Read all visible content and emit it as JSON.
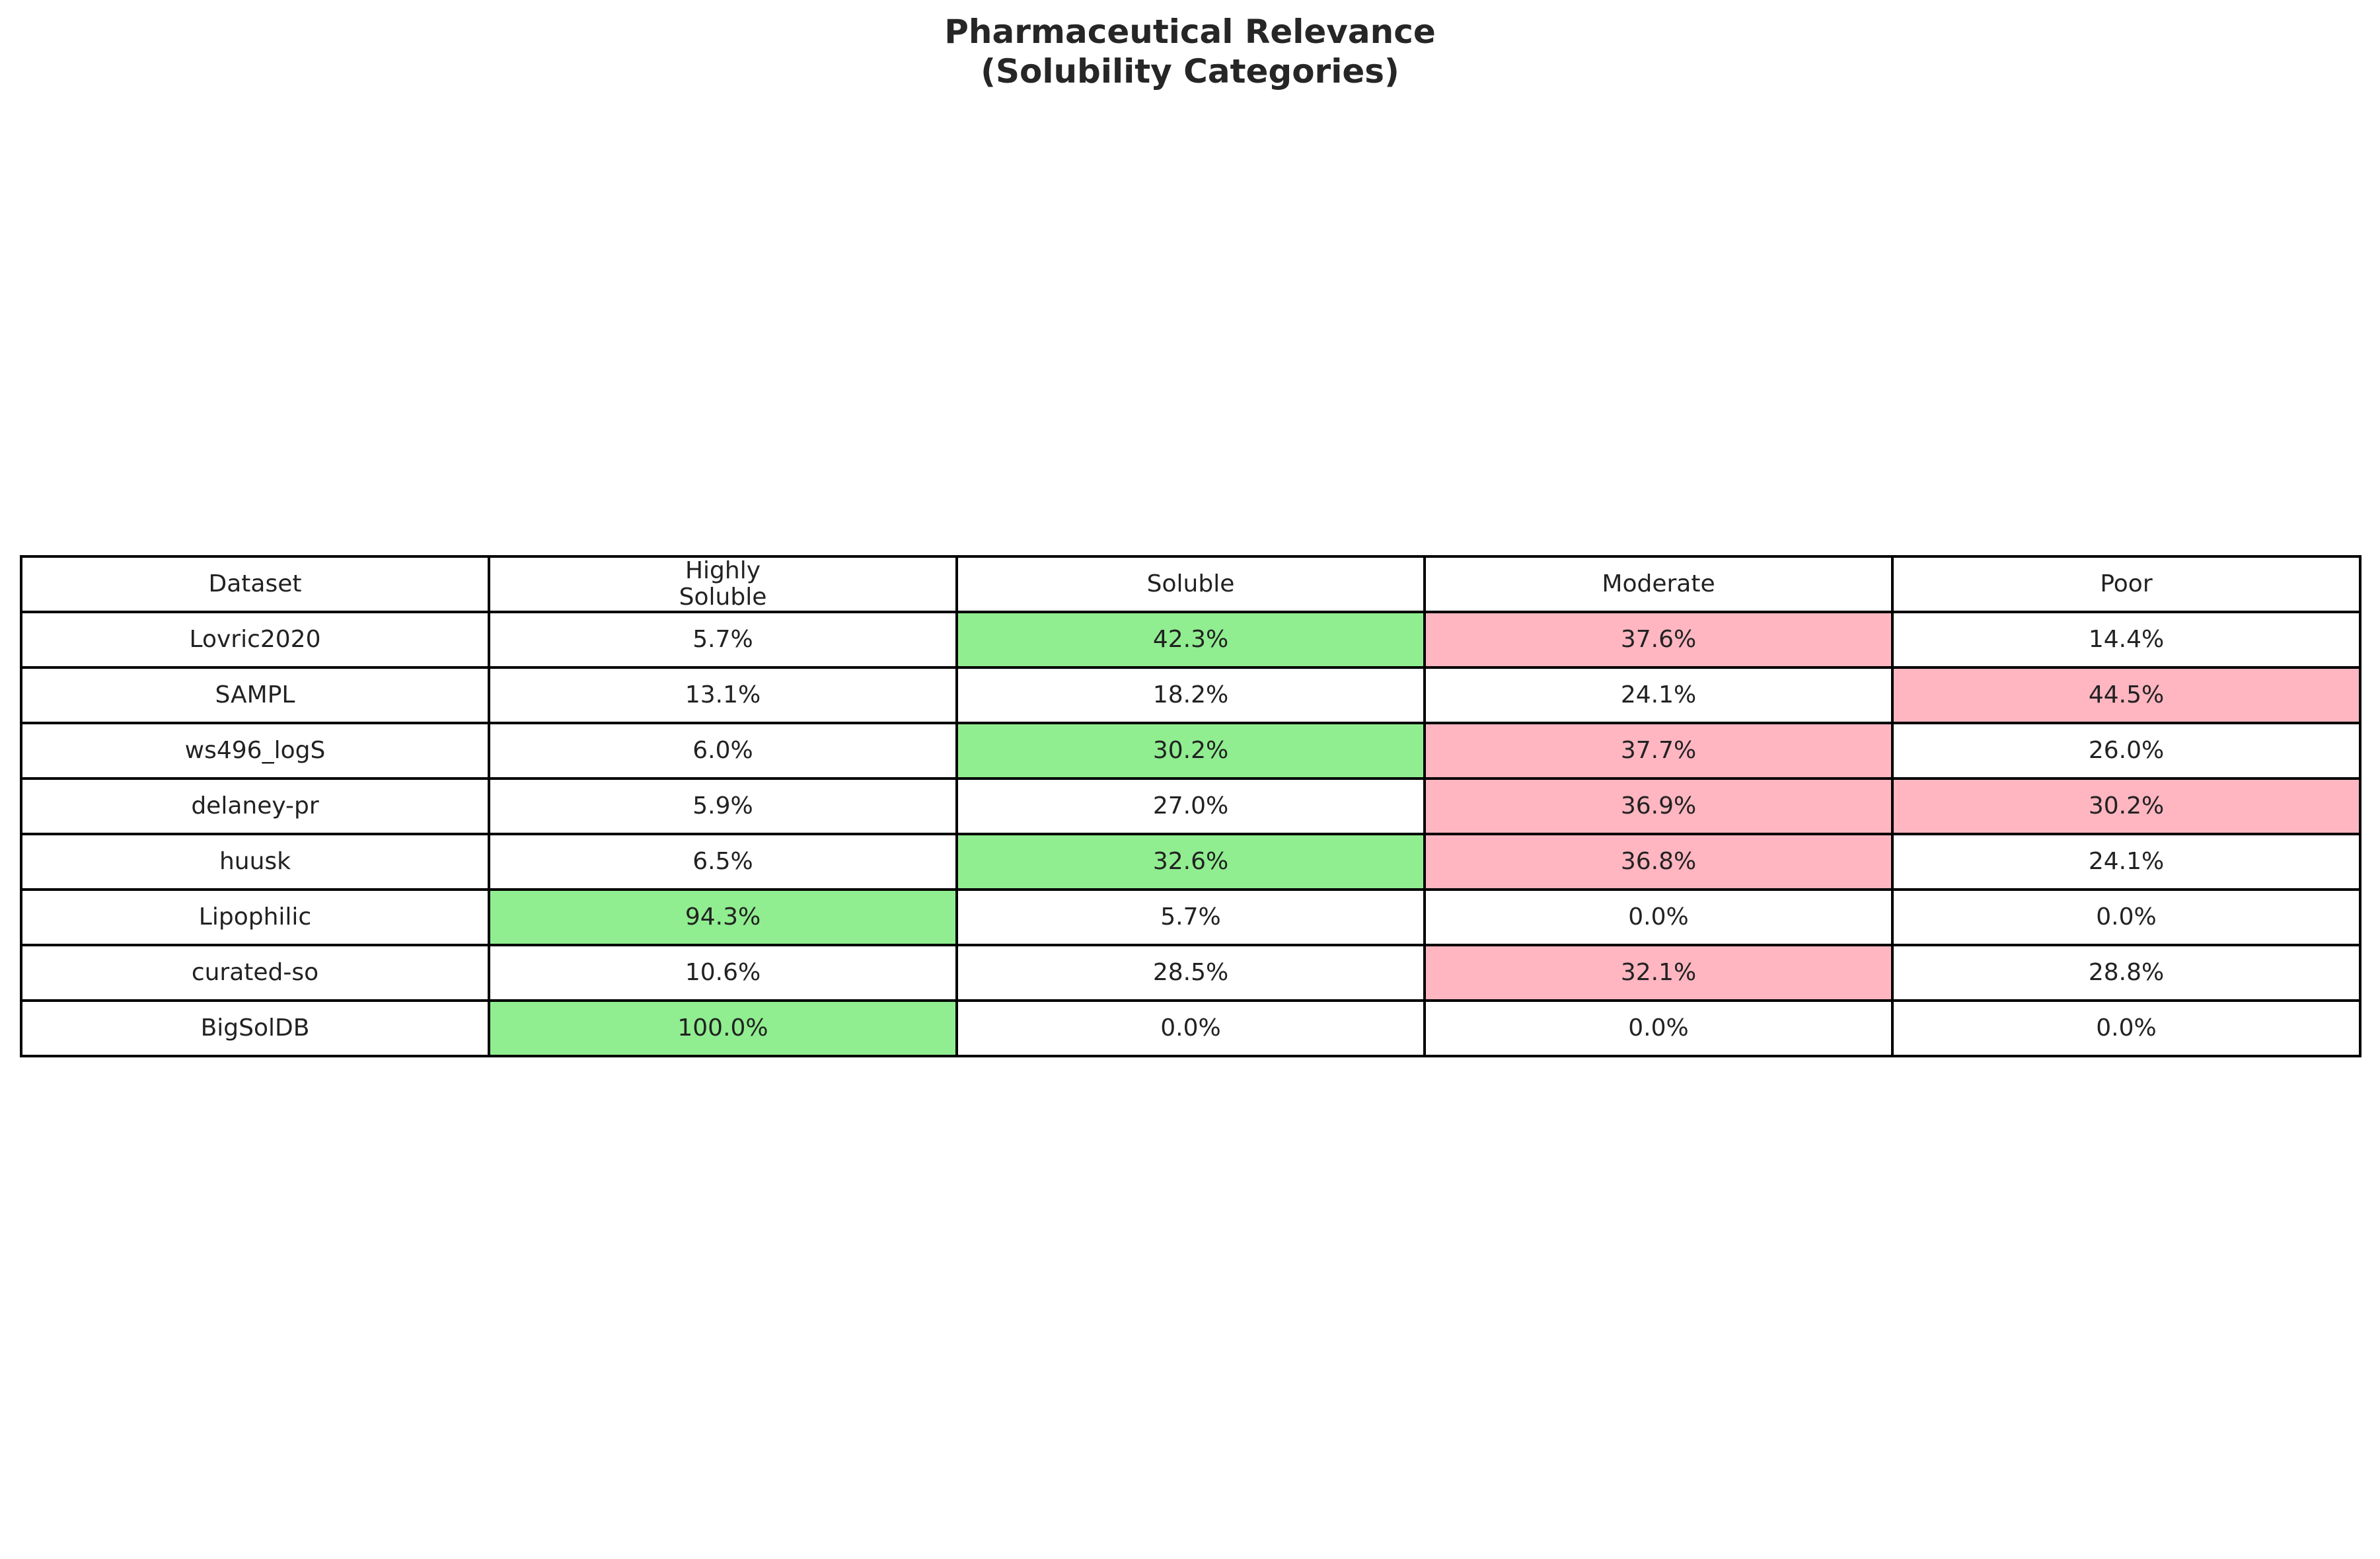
{
  "chart_data": {
    "type": "table",
    "title": "Pharmaceutical Relevance\n(Solubility Categories)",
    "title_lines": [
      "Pharmaceutical Relevance",
      "(Solubility Categories)"
    ],
    "columns": [
      "Dataset",
      "Highly\nSoluble",
      "Soluble",
      "Moderate",
      "Poor"
    ],
    "rows": [
      {
        "dataset": "Lovric2020",
        "values": [
          "5.7%",
          "42.3%",
          "37.6%",
          "14.4%"
        ],
        "highlight": [
          null,
          "green",
          "pink",
          null
        ]
      },
      {
        "dataset": "SAMPL",
        "values": [
          "13.1%",
          "18.2%",
          "24.1%",
          "44.5%"
        ],
        "highlight": [
          null,
          null,
          null,
          "pink"
        ]
      },
      {
        "dataset": "ws496_logS",
        "values": [
          "6.0%",
          "30.2%",
          "37.7%",
          "26.0%"
        ],
        "highlight": [
          null,
          "green",
          "pink",
          null
        ]
      },
      {
        "dataset": "delaney-pr",
        "values": [
          "5.9%",
          "27.0%",
          "36.9%",
          "30.2%"
        ],
        "highlight": [
          null,
          null,
          "pink",
          "pink"
        ]
      },
      {
        "dataset": "huusk",
        "values": [
          "6.5%",
          "32.6%",
          "36.8%",
          "24.1%"
        ],
        "highlight": [
          null,
          "green",
          "pink",
          null
        ]
      },
      {
        "dataset": "Lipophilic",
        "values": [
          "94.3%",
          "5.7%",
          "0.0%",
          "0.0%"
        ],
        "highlight": [
          "green",
          null,
          null,
          null
        ]
      },
      {
        "dataset": "curated-so",
        "values": [
          "10.6%",
          "28.5%",
          "32.1%",
          "28.8%"
        ],
        "highlight": [
          null,
          null,
          "pink",
          null
        ]
      },
      {
        "dataset": "BigSolDB",
        "values": [
          "100.0%",
          "0.0%",
          "0.0%",
          "0.0%"
        ],
        "highlight": [
          "green",
          null,
          null,
          null
        ]
      }
    ],
    "colors": {
      "green": "#90ee90",
      "pink": "#ffb6c1",
      "default": "#ffffff",
      "border": "#000000"
    }
  }
}
